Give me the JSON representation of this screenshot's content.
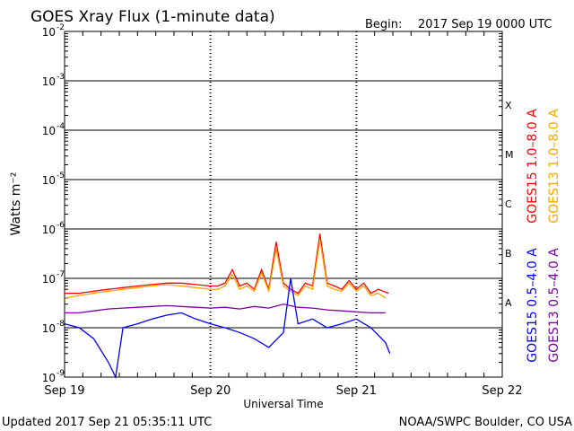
{
  "header": {
    "title": "GOES Xray Flux (1-minute data)",
    "begin_label": "Begin:",
    "begin_value": "2017 Sep 19 0000 UTC"
  },
  "footer": {
    "updated": "Updated 2017 Sep 21 05:35:11 UTC",
    "credit": "NOAA/SWPC Boulder, CO USA"
  },
  "colors": {
    "goes15_long": "#ff0000",
    "goes13_long": "#ffa500",
    "goes15_short": "#0000ff",
    "goes13_short": "#7a00a0"
  },
  "chart_data": {
    "type": "line",
    "title": "GOES Xray Flux (1-minute data)",
    "xlabel": "Universal Time",
    "ylabel": "Watts m⁻²",
    "yscale": "log",
    "ylim": [
      1e-09,
      0.01
    ],
    "xlim_days": [
      0,
      3
    ],
    "x_ticks": [
      "Sep 19",
      "Sep 20",
      "Sep 21",
      "Sep 22"
    ],
    "y_ticks": [
      {
        "base": "10",
        "exp": "-2",
        "value": 0.01
      },
      {
        "base": "10",
        "exp": "-3",
        "value": 0.001
      },
      {
        "base": "10",
        "exp": "-4",
        "value": 0.0001
      },
      {
        "base": "10",
        "exp": "-5",
        "value": 1e-05
      },
      {
        "base": "10",
        "exp": "-6",
        "value": 1e-06
      },
      {
        "base": "10",
        "exp": "-7",
        "value": 1e-07
      },
      {
        "base": "10",
        "exp": "-8",
        "value": 1e-08
      },
      {
        "base": "10",
        "exp": "-9",
        "value": 1e-09
      }
    ],
    "flare_classes": [
      {
        "label": "X",
        "value": 0.00032
      },
      {
        "label": "M",
        "value": 3.2e-05
      },
      {
        "label": "C",
        "value": 3.2e-06
      },
      {
        "label": "B",
        "value": 3.2e-07
      },
      {
        "label": "A",
        "value": 3.2e-08
      }
    ],
    "grid": true,
    "legend": [
      {
        "label": "GOES15 1.0–8.0 A",
        "color": "#ff0000"
      },
      {
        "label": "GOES13 1.0–8.0 A",
        "color": "#ffa500"
      },
      {
        "label": "GOES15 0.5–4.0 A",
        "color": "#0000ff"
      },
      {
        "label": "GOES13 0.5–4.0 A",
        "color": "#7a00a0"
      }
    ],
    "series": [
      {
        "name": "GOES15 1.0–8.0 A",
        "color": "#ff0000",
        "x": [
          0.0,
          0.1,
          0.2,
          0.3,
          0.4,
          0.5,
          0.6,
          0.7,
          0.8,
          0.9,
          1.0,
          1.05,
          1.1,
          1.15,
          1.2,
          1.25,
          1.3,
          1.35,
          1.4,
          1.45,
          1.5,
          1.55,
          1.6,
          1.65,
          1.7,
          1.75,
          1.8,
          1.85,
          1.9,
          1.95,
          2.0,
          2.05,
          2.1,
          2.15,
          2.22
        ],
        "y": [
          5e-08,
          5e-08,
          5.5e-08,
          6e-08,
          6.5e-08,
          7e-08,
          7.5e-08,
          8e-08,
          8e-08,
          7.5e-08,
          7e-08,
          7e-08,
          8e-08,
          1.5e-07,
          7e-08,
          8e-08,
          6e-08,
          1.5e-07,
          6e-08,
          5.5e-07,
          8e-08,
          6e-08,
          5e-08,
          8e-08,
          7e-08,
          8e-07,
          8e-08,
          7e-08,
          6e-08,
          9e-08,
          6e-08,
          8e-08,
          5e-08,
          6e-08,
          5e-08
        ]
      },
      {
        "name": "GOES13 1.0–8.0 A",
        "color": "#ffa500",
        "x": [
          0.0,
          0.1,
          0.2,
          0.3,
          0.4,
          0.5,
          0.6,
          0.7,
          0.8,
          0.9,
          1.0,
          1.05,
          1.1,
          1.15,
          1.2,
          1.25,
          1.3,
          1.35,
          1.4,
          1.45,
          1.5,
          1.55,
          1.6,
          1.65,
          1.7,
          1.75,
          1.8,
          1.85,
          1.9,
          1.95,
          2.0,
          2.05,
          2.1,
          2.15,
          2.2
        ],
        "y": [
          4e-08,
          4.5e-08,
          5e-08,
          5.5e-08,
          6e-08,
          6.5e-08,
          7e-08,
          7.5e-08,
          7e-08,
          6.5e-08,
          6e-08,
          6e-08,
          7e-08,
          1.2e-07,
          6e-08,
          7e-08,
          5.5e-08,
          1.3e-07,
          5.5e-08,
          4e-07,
          7e-08,
          5.5e-08,
          4.5e-08,
          7e-08,
          6e-08,
          6e-07,
          7e-08,
          6e-08,
          5.5e-08,
          8e-08,
          5.5e-08,
          7e-08,
          4.5e-08,
          5e-08,
          4e-08
        ]
      },
      {
        "name": "GOES15 0.5–4.0 A",
        "color": "#0000ff",
        "x": [
          0.0,
          0.1,
          0.2,
          0.3,
          0.35,
          0.4,
          0.5,
          0.6,
          0.7,
          0.8,
          0.9,
          1.0,
          1.1,
          1.2,
          1.3,
          1.4,
          1.5,
          1.55,
          1.6,
          1.7,
          1.8,
          1.9,
          2.0,
          2.1,
          2.2,
          2.23
        ],
        "y": [
          1.2e-08,
          1e-08,
          6e-09,
          2e-09,
          1e-09,
          1e-08,
          1.2e-08,
          1.5e-08,
          1.8e-08,
          2e-08,
          1.5e-08,
          1.2e-08,
          1e-08,
          8e-09,
          6e-09,
          4e-09,
          8e-09,
          1e-07,
          1.2e-08,
          1.5e-08,
          1e-08,
          1.2e-08,
          1.5e-08,
          1e-08,
          5e-09,
          3e-09
        ]
      },
      {
        "name": "GOES13 0.5–4.0 A",
        "color": "#7a00a0",
        "x": [
          0.0,
          0.1,
          0.2,
          0.3,
          0.4,
          0.5,
          0.6,
          0.7,
          0.8,
          0.9,
          1.0,
          1.1,
          1.2,
          1.3,
          1.4,
          1.5,
          1.6,
          1.7,
          1.8,
          1.9,
          2.0,
          2.1,
          2.2
        ],
        "y": [
          2e-08,
          2e-08,
          2.2e-08,
          2.4e-08,
          2.5e-08,
          2.6e-08,
          2.7e-08,
          2.8e-08,
          2.7e-08,
          2.6e-08,
          2.5e-08,
          2.6e-08,
          2.4e-08,
          2.7e-08,
          2.5e-08,
          3e-08,
          2.6e-08,
          2.5e-08,
          2.3e-08,
          2.2e-08,
          2.1e-08,
          2e-08,
          2e-08
        ]
      }
    ]
  }
}
